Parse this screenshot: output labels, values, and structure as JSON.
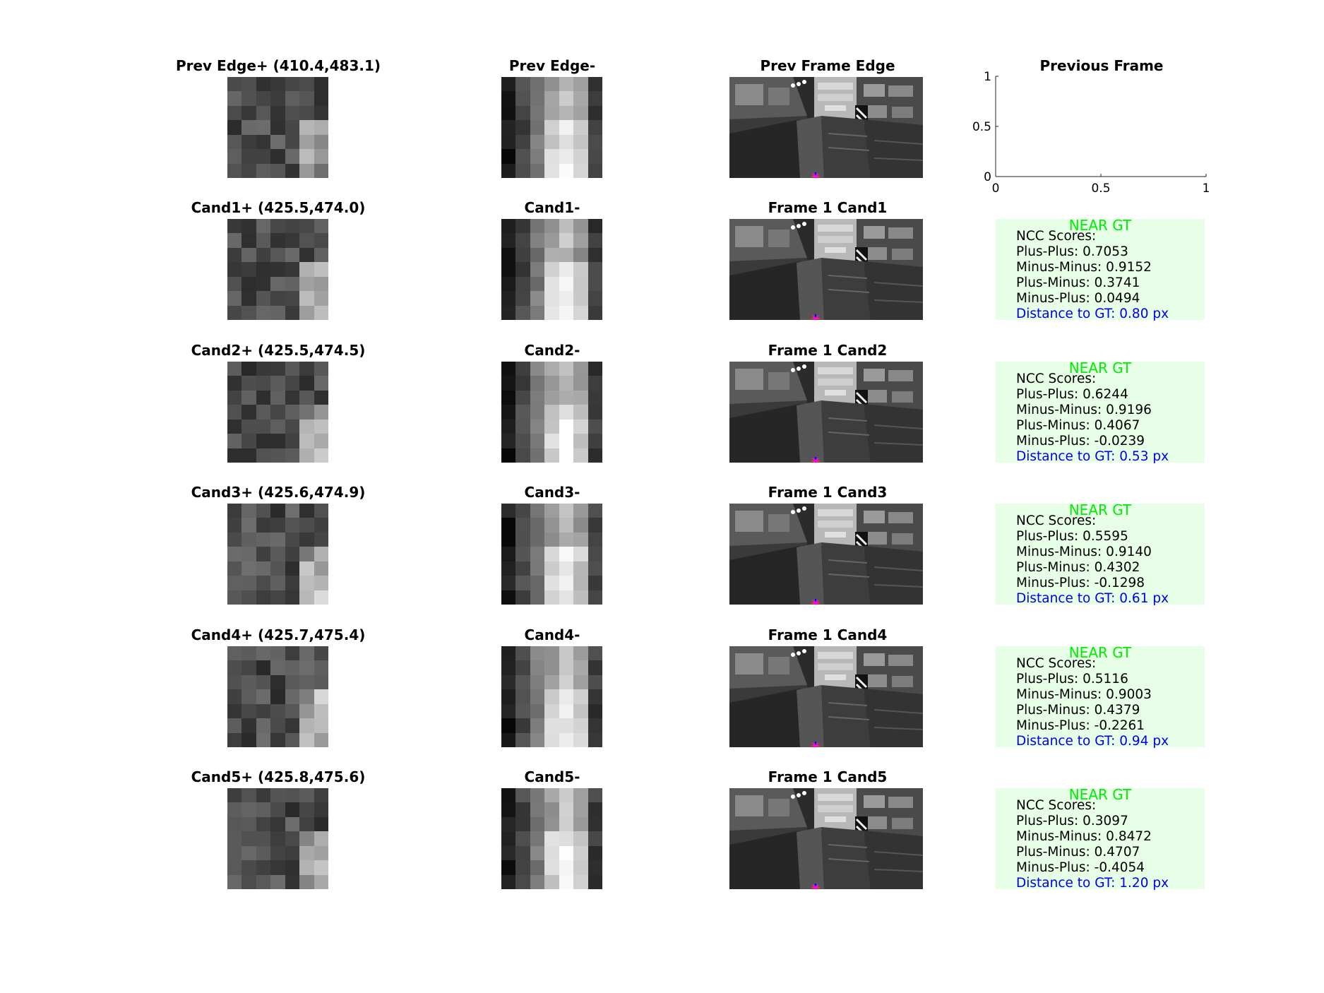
{
  "prev_row": {
    "edge_plus_title": "Prev Edge+ (410.4,483.1)",
    "edge_minus_title": "Prev Edge-",
    "frame_title": "Prev Frame Edge",
    "axes_title": "Previous Frame",
    "axes": {
      "x_ticks": [
        "0",
        "0.5",
        "1"
      ],
      "y_ticks": [
        "0",
        "0.5",
        "1"
      ],
      "xlim": [
        0,
        1
      ],
      "ylim": [
        0,
        1
      ]
    }
  },
  "candidates": [
    {
      "plus_title": "Cand1+ (425.5,474.0)",
      "minus_title": "Cand1-",
      "frame_title": "Frame 1 Cand1",
      "status": "NEAR GT",
      "header": "NCC Scores:",
      "plus_plus": "Plus-Plus: 0.7053",
      "minus_minus": "Minus-Minus: 0.9152",
      "plus_minus": "Plus-Minus: 0.3741",
      "minus_plus": "Minus-Plus: 0.0494",
      "distance": "Distance to GT: 0.80 px"
    },
    {
      "plus_title": "Cand2+ (425.5,474.5)",
      "minus_title": "Cand2-",
      "frame_title": "Frame 1 Cand2",
      "status": "NEAR GT",
      "header": "NCC Scores:",
      "plus_plus": "Plus-Plus: 0.6244",
      "minus_minus": "Minus-Minus: 0.9196",
      "plus_minus": "Plus-Minus: 0.4067",
      "minus_plus": "Minus-Plus: -0.0239",
      "distance": "Distance to GT: 0.53 px"
    },
    {
      "plus_title": "Cand3+ (425.6,474.9)",
      "minus_title": "Cand3-",
      "frame_title": "Frame 1 Cand3",
      "status": "NEAR GT",
      "header": "NCC Scores:",
      "plus_plus": "Plus-Plus: 0.5595",
      "minus_minus": "Minus-Minus: 0.9140",
      "plus_minus": "Plus-Minus: 0.4302",
      "minus_plus": "Minus-Plus: -0.1298",
      "distance": "Distance to GT: 0.61 px"
    },
    {
      "plus_title": "Cand4+ (425.7,475.4)",
      "minus_title": "Cand4-",
      "frame_title": "Frame 1 Cand4",
      "status": "NEAR GT",
      "header": "NCC Scores:",
      "plus_plus": "Plus-Plus: 0.5116",
      "minus_minus": "Minus-Minus: 0.9003",
      "plus_minus": "Plus-Minus: 0.4379",
      "minus_plus": "Minus-Plus: -0.2261",
      "distance": "Distance to GT: 0.94 px"
    },
    {
      "plus_title": "Cand5+ (425.8,475.6)",
      "minus_title": "Cand5-",
      "frame_title": "Frame 1 Cand5",
      "status": "NEAR GT",
      "header": "NCC Scores:",
      "plus_plus": "Plus-Plus: 0.3097",
      "minus_minus": "Minus-Minus: 0.8472",
      "plus_minus": "Plus-Minus: 0.4707",
      "minus_plus": "Minus-Plus: -0.4054",
      "distance": "Distance to GT: 1.20 px"
    }
  ],
  "colors": {
    "near_gt": "#00ee00",
    "distance": "#0000ee",
    "ncc_box_bg": "#e6ffe6"
  }
}
